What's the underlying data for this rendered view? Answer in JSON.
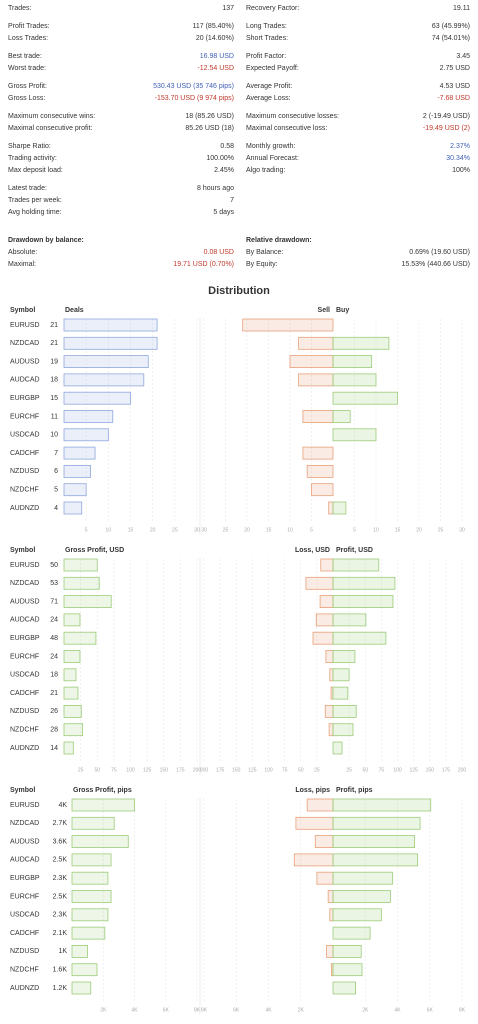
{
  "stats": {
    "left": [
      {
        "rows": [
          {
            "label": "Trades:",
            "value": "137"
          }
        ]
      },
      {
        "rows": [
          {
            "label": "Profit Trades:",
            "value": "117 (85.40%)"
          },
          {
            "label": "Loss Trades:",
            "value": "20 (14.60%)"
          }
        ]
      },
      {
        "rows": [
          {
            "label": "Best trade:",
            "value": "16.98 USD",
            "color": "#3f5fb5"
          },
          {
            "label": "Worst trade:",
            "value": "-12.54 USD",
            "color": "#c0392b"
          }
        ]
      },
      {
        "rows": [
          {
            "label": "Gross Profit:",
            "value": "530.43 USD (35 746 pips)",
            "color": "#3f5fb5"
          },
          {
            "label": "Gross Loss:",
            "value": "-153.70 USD (9 974 pips)",
            "color": "#c0392b"
          }
        ]
      },
      {
        "rows": [
          {
            "label": "Maximum consecutive wins:",
            "value": "18 (85.26 USD)"
          },
          {
            "label": "Maximal consecutive profit:",
            "value": "85.26 USD (18)"
          }
        ]
      },
      {
        "rows": [
          {
            "label": "Sharpe Ratio:",
            "value": "0.58"
          },
          {
            "label": "Trading activity:",
            "value": "100.00%"
          },
          {
            "label": "Max deposit load:",
            "value": "2.45%"
          }
        ]
      },
      {
        "rows": [
          {
            "label": "Latest trade:",
            "value": "8 hours ago"
          },
          {
            "label": "Trades per week:",
            "value": "7"
          },
          {
            "label": "Avg holding time:",
            "value": "5 days"
          }
        ]
      },
      {
        "header": "Drawdown by balance:",
        "rows": [
          {
            "label": "Absolute:",
            "value": "0.08 USD",
            "color": "#c0392b"
          },
          {
            "label": "Maximal:",
            "value": "19.71 USD (0.70%)",
            "color": "#c0392b"
          }
        ]
      }
    ],
    "right": [
      {
        "rows": [
          {
            "label": "Recovery Factor:",
            "value": "19.11"
          }
        ]
      },
      {
        "rows": [
          {
            "label": "Long Trades:",
            "value": "63 (45.99%)"
          },
          {
            "label": "Short Trades:",
            "value": "74 (54.01%)"
          }
        ]
      },
      {
        "rows": [
          {
            "label": "Profit Factor:",
            "value": "3.45"
          },
          {
            "label": "Expected Payoff:",
            "value": "2.75 USD"
          }
        ]
      },
      {
        "rows": [
          {
            "label": "Average Profit:",
            "value": "4.53 USD"
          },
          {
            "label": "Average Loss:",
            "value": "-7.68 USD",
            "color": "#c0392b"
          }
        ]
      },
      {
        "rows": [
          {
            "label": "Maximum consecutive losses:",
            "value": "2 (-19.49 USD)"
          },
          {
            "label": "Maximal consecutive loss:",
            "value": "-19.49 USD (2)",
            "color": "#c0392b"
          }
        ]
      },
      {
        "rows": [
          {
            "label": "Monthly growth:",
            "value": "2.37%",
            "color": "#3f5fb5"
          },
          {
            "label": "Annual Forecast:",
            "value": "30.34%",
            "color": "#3f5fb5"
          },
          {
            "label": "Algo trading:",
            "value": "100%"
          }
        ]
      },
      {
        "header": "Relative drawdown:",
        "rows": [
          {
            "label": "By Balance:",
            "value": "0.69% (19.60 USD)"
          },
          {
            "label": "By Equity:",
            "value": "15.53% (440.66 USD)"
          }
        ]
      }
    ]
  },
  "distribution_title": "Distribution",
  "chart_data": [
    {
      "type": "bar",
      "category_header": "Symbol",
      "title": "Deals",
      "categories": [
        "EURUSD",
        "NZDCAD",
        "AUDUSD",
        "AUDCAD",
        "EURGBP",
        "EURCHF",
        "USDCAD",
        "CADCHF",
        "NZDUSD",
        "NZDCHF",
        "AUDNZD"
      ],
      "values": [
        21,
        21,
        19,
        18,
        15,
        11,
        10,
        7,
        6,
        5,
        4
      ],
      "color": "#8fa8dc",
      "xlim": [
        0,
        30
      ],
      "xticks": [
        5,
        10,
        15,
        20,
        25,
        30
      ],
      "grid": true
    },
    {
      "type": "diverging_bar",
      "series": [
        {
          "name": "Sell",
          "color": "#e8a07a",
          "values": [
            21,
            8,
            10,
            8,
            0,
            7,
            0,
            7,
            6,
            5,
            1
          ]
        },
        {
          "name": "Buy",
          "color": "#9ccc7a",
          "values": [
            0,
            13,
            9,
            10,
            15,
            4,
            10,
            0,
            0,
            0,
            3
          ]
        }
      ],
      "xlim": [
        -30,
        30
      ],
      "xticks": [
        {
          "value": -30,
          "label": "30"
        },
        {
          "value": -25,
          "label": "25"
        },
        {
          "value": -20,
          "label": "20"
        },
        {
          "value": -15,
          "label": "15"
        },
        {
          "value": -10,
          "label": "10"
        },
        {
          "value": -5,
          "label": "5"
        },
        5,
        10,
        15,
        20,
        25,
        30
      ],
      "grid": true
    },
    {
      "type": "bar",
      "category_header": "Symbol",
      "title": "Gross Profit, USD",
      "categories": [
        "EURUSD",
        "NZDCAD",
        "AUDUSD",
        "AUDCAD",
        "EURGBP",
        "EURCHF",
        "USDCAD",
        "CADCHF",
        "NZDUSD",
        "NZDCHF",
        "AUDNZD"
      ],
      "values": [
        50,
        53,
        71,
        24,
        48,
        24,
        18,
        21,
        26,
        28,
        14
      ],
      "color": "#9ccc7a",
      "xlim": [
        0,
        200
      ],
      "xticks": [
        25,
        50,
        75,
        100,
        125,
        150,
        175,
        200
      ],
      "grid": true
    },
    {
      "type": "diverging_bar",
      "series": [
        {
          "name": "Loss, USD",
          "color": "#e8a07a",
          "values": [
            19,
            42,
            20,
            26,
            31,
            11,
            5,
            3,
            12,
            6,
            0
          ]
        },
        {
          "name": "Profit, USD",
          "color": "#9ccc7a",
          "values": [
            71,
            96,
            93,
            51,
            82,
            34,
            25,
            23,
            36,
            31,
            14
          ]
        }
      ],
      "xlim": [
        -200,
        200
      ],
      "xticks": [
        {
          "value": -200,
          "label": "200"
        },
        {
          "value": -175,
          "label": "175"
        },
        {
          "value": -150,
          "label": "150"
        },
        {
          "value": -125,
          "label": "125"
        },
        {
          "value": -100,
          "label": "100"
        },
        {
          "value": -75,
          "label": "75"
        },
        {
          "value": -50,
          "label": "50"
        },
        {
          "value": -25,
          "label": "25"
        },
        25,
        50,
        75,
        100,
        125,
        150,
        175,
        200
      ],
      "grid": true
    },
    {
      "type": "bar",
      "category_header": "Symbol",
      "title": "Gross Profit, pips",
      "categories": [
        "EURUSD",
        "NZDCAD",
        "AUDUSD",
        "AUDCAD",
        "EURGBP",
        "EURCHF",
        "USDCAD",
        "CADCHF",
        "NZDUSD",
        "NZDCHF",
        "AUDNZD"
      ],
      "values": [
        4000,
        2700,
        3600,
        2500,
        2300,
        2500,
        2300,
        2100,
        1000,
        1600,
        1200
      ],
      "value_labels": [
        "4K",
        "2.7K",
        "3.6K",
        "2.5K",
        "2.3K",
        "2.5K",
        "2.3K",
        "2.1K",
        "1K",
        "1.6K",
        "1.2K"
      ],
      "color": "#9ccc7a",
      "xlim": [
        0,
        8000
      ],
      "xticks": [
        {
          "value": 2000,
          "label": "2K"
        },
        {
          "value": 4000,
          "label": "4K"
        },
        {
          "value": 6000,
          "label": "6K"
        },
        {
          "value": 8000,
          "label": "8K"
        }
      ],
      "grid": true
    },
    {
      "type": "diverging_bar",
      "series": [
        {
          "name": "Loss, pips",
          "color": "#e8a07a",
          "values": [
            1600,
            2300,
            1100,
            2400,
            1000,
            300,
            200,
            0,
            400,
            100,
            0
          ]
        },
        {
          "name": "Profit, pips",
          "color": "#9ccc7a",
          "values": [
            6060,
            5400,
            5060,
            5250,
            3700,
            3560,
            3000,
            2300,
            1750,
            1800,
            1400
          ]
        }
      ],
      "xlim": [
        -8000,
        8000
      ],
      "xticks": [
        {
          "value": -8000,
          "label": "8K"
        },
        {
          "value": -6000,
          "label": "6K"
        },
        {
          "value": -4000,
          "label": "4K"
        },
        {
          "value": -2000,
          "label": "2K"
        },
        {
          "value": 2000,
          "label": "2K"
        },
        {
          "value": 4000,
          "label": "4K"
        },
        {
          "value": 6000,
          "label": "6K"
        },
        {
          "value": 8000,
          "label": "8K"
        }
      ],
      "grid": true
    }
  ]
}
